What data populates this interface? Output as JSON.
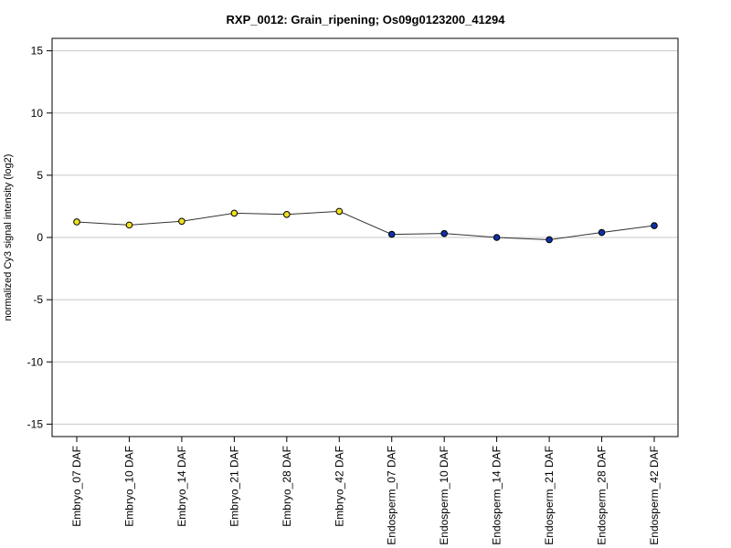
{
  "chart_data": {
    "type": "line",
    "title": "RXP_0012: Grain_ripening; Os09g0123200_41294",
    "xlabel": "",
    "ylabel": "normalized Cy3 signal intensity (log2)",
    "ylim": [
      -16,
      16
    ],
    "y_ticks": [
      "-15",
      "-10",
      "-5",
      "0",
      "5",
      "10",
      "15"
    ],
    "grid": "horizontal",
    "categories": [
      "Embryo_07 DAF",
      "Embryo_10 DAF",
      "Embryo_14 DAF",
      "Embryo_21 DAF",
      "Embryo_28 DAF",
      "Embryo_42 DAF",
      "Endosperm_07 DAF",
      "Endosperm_10 DAF",
      "Endosperm_14 DAF",
      "Endosperm_21 DAF",
      "Endosperm_28 DAF",
      "Endosperm_42 DAF"
    ],
    "values": [
      1.25,
      1.0,
      1.3,
      1.95,
      1.85,
      2.1,
      0.25,
      0.32,
      0.0,
      -0.18,
      0.4,
      0.95
    ],
    "point_colors": [
      "#f0e020",
      "#f0e020",
      "#f0e020",
      "#f0e020",
      "#f0e020",
      "#f0e020",
      "#1030a8",
      "#1030a8",
      "#1030a8",
      "#1030a8",
      "#1030a8",
      "#1030a8"
    ],
    "colors": {
      "line": "#333333",
      "grid": "#c8c8c8",
      "frame": "#000000",
      "embryo": "#f0e020",
      "endosperm": "#1030a8"
    }
  }
}
